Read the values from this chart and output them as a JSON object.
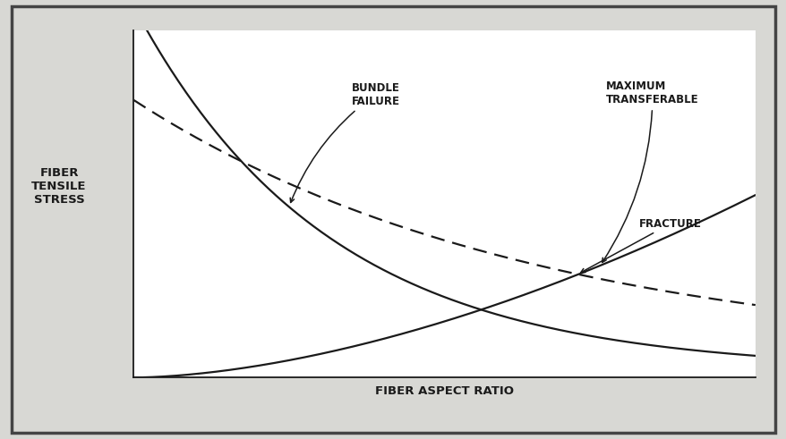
{
  "xlabel": "FIBER ASPECT RATIO",
  "ylabel": "FIBER\nTENSILE\nSTRESS",
  "xlim": [
    0,
    10
  ],
  "ylim": [
    0,
    10
  ],
  "background_color": "#ffffff",
  "outer_bg": "#d8d8d4",
  "line_color": "#1a1a1a",
  "label_bundle_failure": "BUNDLE\nFAILURE",
  "label_maximum": "MAXIMUM\nTRANSFERABLE",
  "label_fracture": "FRACTURE",
  "annotation_fontsize": 8.5,
  "axis_label_fontsize": 9.5,
  "ylabel_fontsize": 9.5
}
